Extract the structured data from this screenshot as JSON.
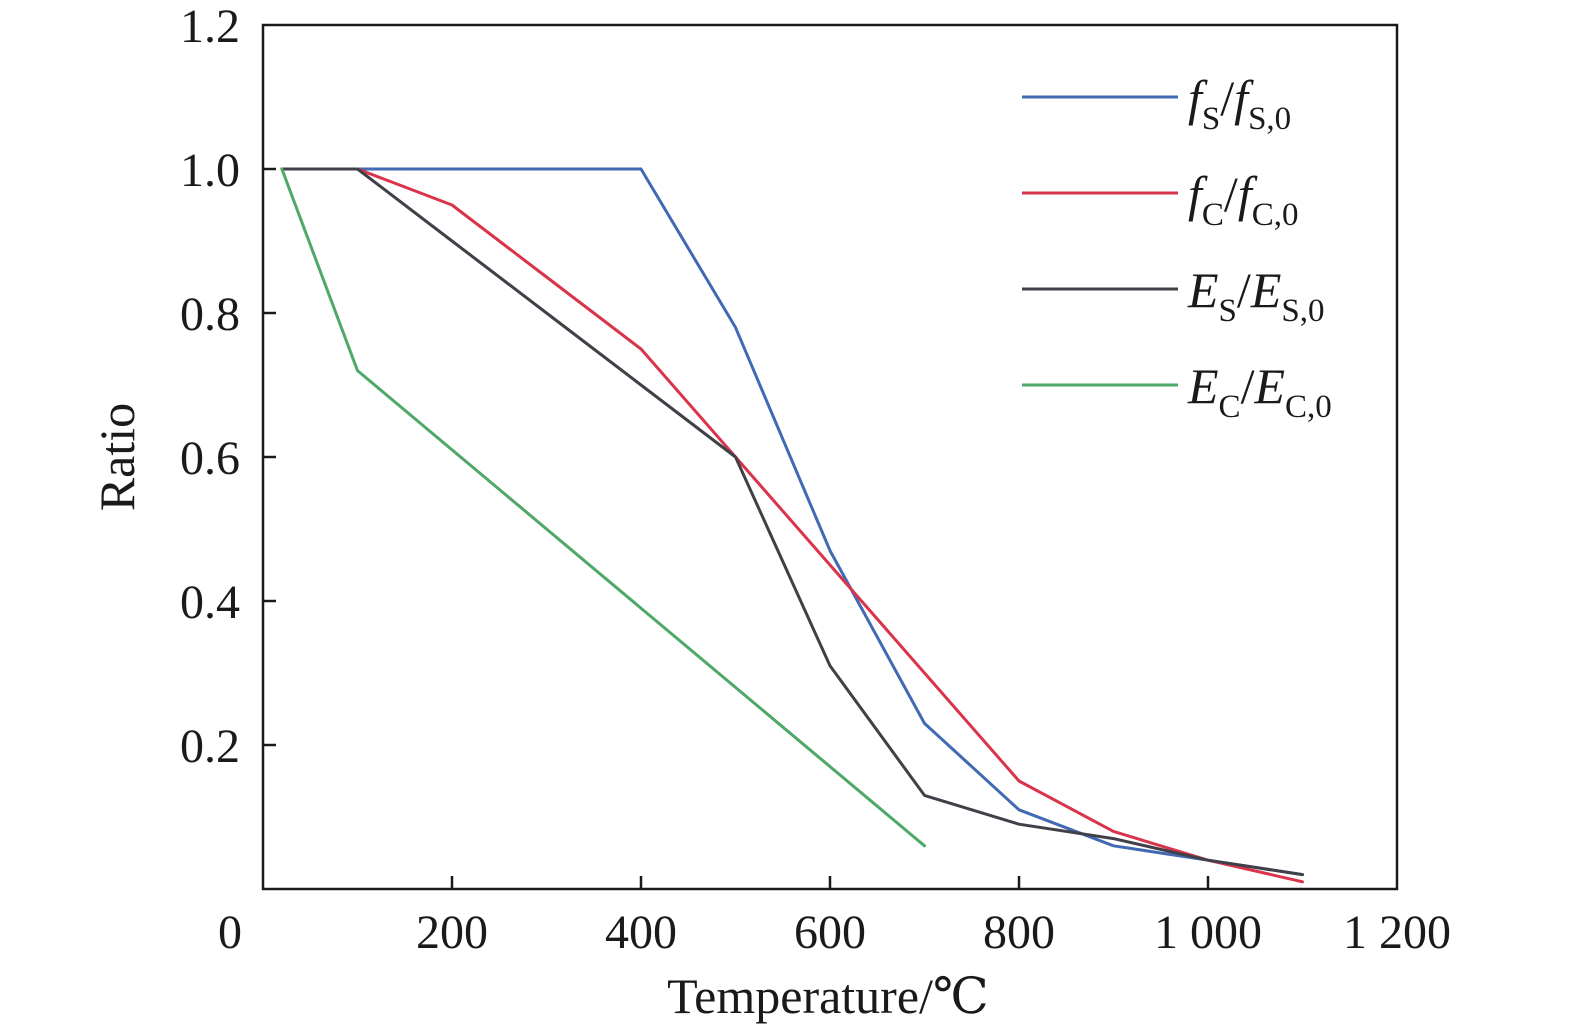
{
  "chart_data": {
    "type": "line",
    "title": "",
    "xlabel": "Temperature/℃",
    "ylabel": "Ratio",
    "xlim": [
      0,
      1200
    ],
    "ylim": [
      0,
      1.2
    ],
    "x_ticks": [
      0,
      200,
      400,
      600,
      800,
      1000,
      1200
    ],
    "x_tick_labels": [
      "0",
      "200",
      "400",
      "600",
      "800",
      "1 000",
      "1 200"
    ],
    "y_ticks": [
      0.2,
      0.4,
      0.6,
      0.8,
      1.0,
      1.2
    ],
    "y_tick_labels": [
      "0.2",
      "0.4",
      "0.6",
      "0.8",
      "1.0",
      "1.2"
    ],
    "grid": false,
    "legend_position": "top-right",
    "series": [
      {
        "name": "fS/fS,0",
        "legend": {
          "main": "f",
          "sub": "S",
          "main2": "f",
          "sub2": "S,0"
        },
        "color": "#4169b4",
        "x": [
          20,
          100,
          200,
          300,
          400,
          500,
          600,
          700,
          800,
          900,
          1000,
          1100
        ],
        "y": [
          1.0,
          1.0,
          1.0,
          1.0,
          1.0,
          0.78,
          0.47,
          0.23,
          0.11,
          0.06,
          0.04,
          0.02
        ]
      },
      {
        "name": "fC/fC,0",
        "legend": {
          "main": "f",
          "sub": "C",
          "main2": "f",
          "sub2": "C,0"
        },
        "color": "#d9344a",
        "x": [
          20,
          100,
          200,
          300,
          400,
          500,
          600,
          700,
          800,
          900,
          1000,
          1100
        ],
        "y": [
          1.0,
          1.0,
          0.95,
          0.85,
          0.75,
          0.6,
          0.45,
          0.3,
          0.15,
          0.08,
          0.04,
          0.01
        ]
      },
      {
        "name": "ES/ES,0",
        "legend": {
          "main": "E",
          "sub": "S",
          "main2": "E",
          "sub2": "S,0"
        },
        "color": "#404048",
        "x": [
          20,
          100,
          200,
          300,
          400,
          500,
          600,
          700,
          800,
          900,
          1000,
          1100
        ],
        "y": [
          1.0,
          1.0,
          0.9,
          0.8,
          0.7,
          0.6,
          0.31,
          0.13,
          0.09,
          0.07,
          0.04,
          0.02
        ]
      },
      {
        "name": "EC/EC,0",
        "legend": {
          "main": "E",
          "sub": "C",
          "main2": "E",
          "sub2": "C,0"
        },
        "color": "#4ea868",
        "x": [
          20,
          100,
          700
        ],
        "y": [
          1.0,
          0.72,
          0.06
        ]
      }
    ]
  }
}
